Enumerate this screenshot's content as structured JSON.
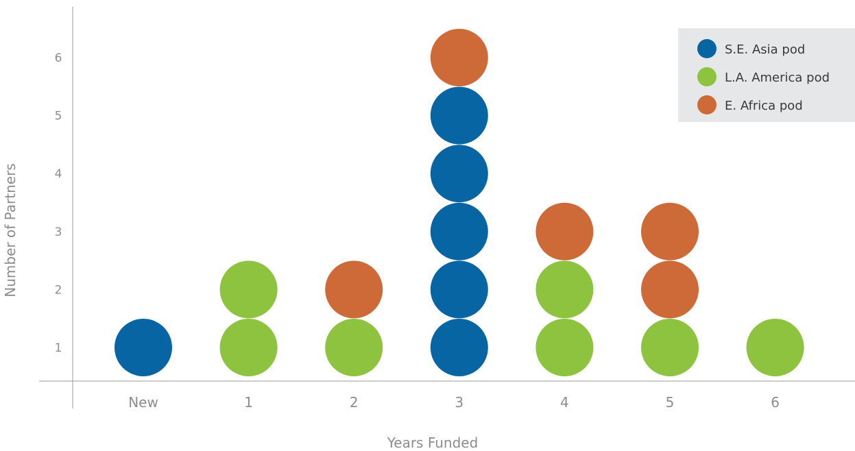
{
  "chart_data": {
    "type": "scatter",
    "title": "",
    "xlabel": "Years Funded",
    "ylabel": "Number of Partners",
    "categories": [
      "New",
      "1",
      "2",
      "3",
      "4",
      "5",
      "6"
    ],
    "yticks": [
      "1",
      "2",
      "3",
      "4",
      "5",
      "6"
    ],
    "ylim": [
      1,
      6
    ],
    "grid": false,
    "legend_position": "top-right",
    "series": [
      {
        "name": "S.E. Asia pod",
        "color": "#0765a3",
        "points": [
          {
            "x": "New",
            "y": 1
          },
          {
            "x": "3",
            "y": 1
          },
          {
            "x": "3",
            "y": 2
          },
          {
            "x": "3",
            "y": 3
          },
          {
            "x": "3",
            "y": 4
          },
          {
            "x": "3",
            "y": 5
          }
        ]
      },
      {
        "name": "L.A. America pod",
        "color": "#8dc33f",
        "points": [
          {
            "x": "1",
            "y": 1
          },
          {
            "x": "1",
            "y": 2
          },
          {
            "x": "2",
            "y": 1
          },
          {
            "x": "4",
            "y": 1
          },
          {
            "x": "4",
            "y": 2
          },
          {
            "x": "5",
            "y": 1
          },
          {
            "x": "6",
            "y": 1
          }
        ]
      },
      {
        "name": "E. Africa pod",
        "color": "#cd6a38",
        "points": [
          {
            "x": "2",
            "y": 2
          },
          {
            "x": "3",
            "y": 6
          },
          {
            "x": "4",
            "y": 3
          },
          {
            "x": "5",
            "y": 2
          },
          {
            "x": "5",
            "y": 3
          }
        ]
      }
    ]
  }
}
